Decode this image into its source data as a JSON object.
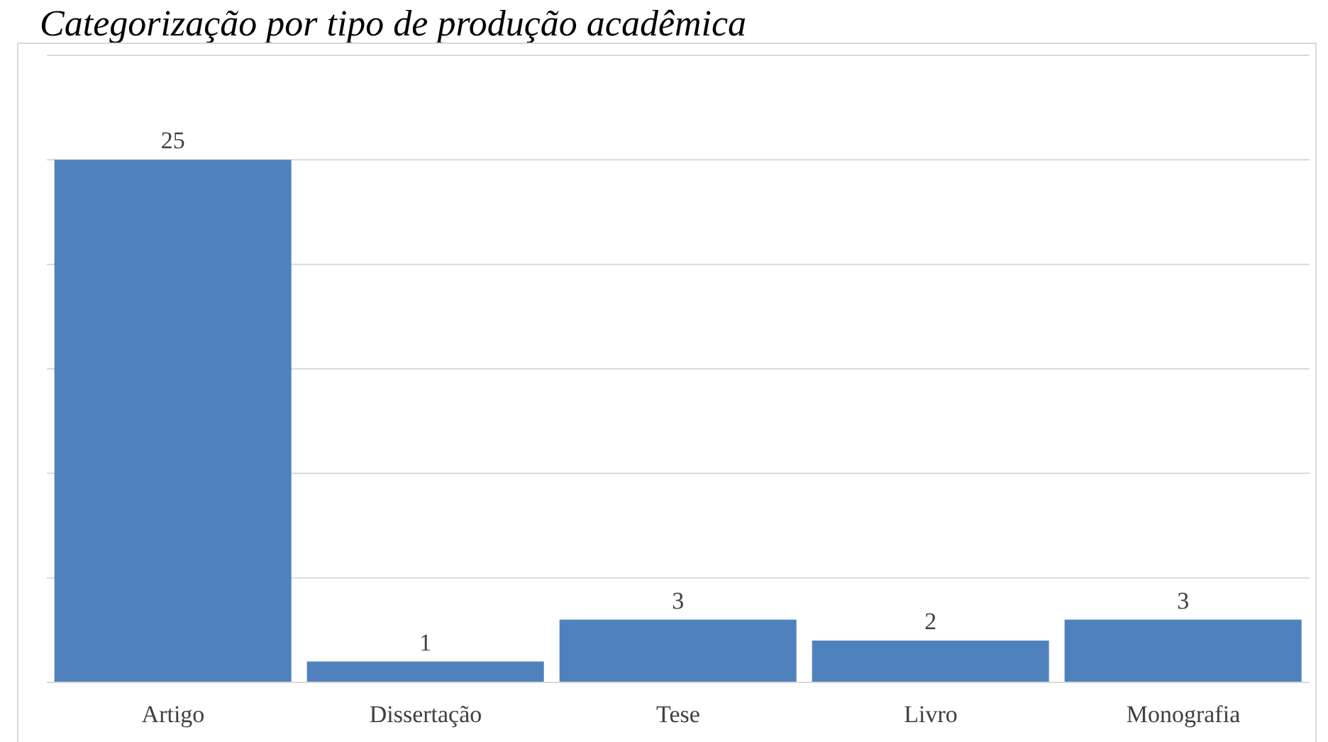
{
  "chart_data": {
    "type": "bar",
    "title": "Categorização por tipo de produção acadêmica",
    "categories": [
      "Artigo",
      "Dissertação",
      "Tese",
      "Livro",
      "Monografia"
    ],
    "values": [
      25,
      1,
      3,
      2,
      3
    ],
    "color": "#4f81bd",
    "tick_labels": "x",
    "grid": "y",
    "data_labels": true
  }
}
